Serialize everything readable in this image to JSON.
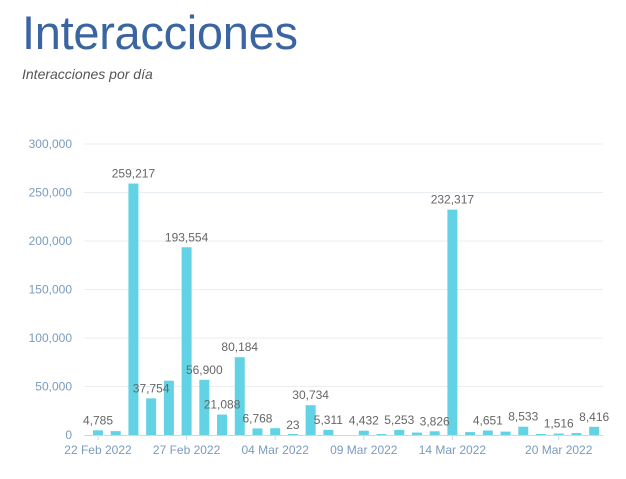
{
  "header": {
    "title": "Interacciones",
    "subtitle": "Interacciones por día"
  },
  "colors": {
    "title": "#3a65a0",
    "bar": "#62d3e4",
    "grid": "#e9eef3",
    "axis_text": "#7a9bbf",
    "data_label": "#666666"
  },
  "chart_data": {
    "type": "bar",
    "title": "",
    "xlabel": "",
    "ylabel": "",
    "ylim": [
      0,
      300000
    ],
    "y_ticks": [
      0,
      50000,
      100000,
      150000,
      200000,
      250000,
      300000
    ],
    "y_tick_labels": [
      "0",
      "50,000",
      "100,000",
      "150,000",
      "200,000",
      "250,000",
      "300,000"
    ],
    "grid": true,
    "legend": "none",
    "x_tick_labels": [
      {
        "index": 0,
        "label": "22 Feb 2022"
      },
      {
        "index": 5,
        "label": "27 Feb 2022"
      },
      {
        "index": 10,
        "label": "04 Mar 2022"
      },
      {
        "index": 15,
        "label": "09 Mar 2022"
      },
      {
        "index": 20,
        "label": "14 Mar 2022"
      },
      {
        "index": 26,
        "label": "20 Mar 2022"
      }
    ],
    "categories": [
      "22 Feb 2022",
      "23 Feb 2022",
      "24 Feb 2022",
      "25 Feb 2022",
      "26 Feb 2022",
      "27 Feb 2022",
      "28 Feb 2022",
      "01 Mar 2022",
      "02 Mar 2022",
      "03 Mar 2022",
      "04 Mar 2022",
      "05 Mar 2022",
      "06 Mar 2022",
      "07 Mar 2022",
      "08 Mar 2022",
      "09 Mar 2022",
      "10 Mar 2022",
      "11 Mar 2022",
      "12 Mar 2022",
      "13 Mar 2022",
      "14 Mar 2022",
      "15 Mar 2022",
      "16 Mar 2022",
      "17 Mar 2022",
      "18 Mar 2022",
      "19 Mar 2022",
      "20 Mar 2022",
      "21 Mar 2022",
      "22 Mar 2022"
    ],
    "values": [
      4785,
      4000,
      259217,
      37754,
      56000,
      193554,
      56900,
      21088,
      80184,
      6768,
      7000,
      23,
      30734,
      5311,
      0,
      4432,
      1000,
      5253,
      2500,
      3826,
      232317,
      3000,
      4651,
      3500,
      8533,
      500,
      1516,
      2000,
      8416
    ],
    "labels": [
      "4,785",
      "",
      "259,217",
      "37,754",
      "",
      "193,554",
      "56,900",
      "21,088",
      "80,184",
      "6,768",
      "",
      "23",
      "30,734",
      "5,311",
      "",
      "4,432",
      "",
      "5,253",
      "",
      "3,826",
      "232,317",
      "",
      "4,651",
      "",
      "8,533",
      "",
      "1,516",
      "",
      "8,416"
    ]
  }
}
